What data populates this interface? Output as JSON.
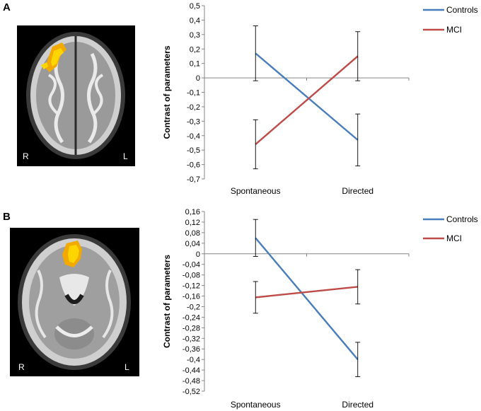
{
  "panels": [
    {
      "label": "A",
      "brain_sides": {
        "right": "R",
        "left": "L"
      }
    },
    {
      "label": "B",
      "brain_sides": {
        "right": "R",
        "left": "L"
      }
    }
  ],
  "colors": {
    "controls": "#4a7ebb",
    "mci": "#be4b48",
    "axis": "#868686",
    "errorbar": "#000000",
    "activation": "#ffd500"
  },
  "chart_data": [
    {
      "type": "line",
      "ylabel": "Contrast of parameters",
      "xlabel": "",
      "categories": [
        "Spontaneous",
        "Directed"
      ],
      "ylim": [
        -0.7,
        0.5
      ],
      "ytick_labels": [
        "0,5",
        "0,4",
        "0,3",
        "0,2",
        "0,1",
        "0",
        "-0,1",
        "-0,2",
        "-0,3",
        "-0,4",
        "-0,5",
        "-0,6",
        "-0,7"
      ],
      "legend_position": "top-right",
      "series": [
        {
          "name": "Controls",
          "values": [
            0.17,
            -0.43
          ],
          "errors": [
            0.19,
            0.18
          ]
        },
        {
          "name": "MCI",
          "values": [
            -0.46,
            0.15
          ],
          "errors": [
            0.17,
            0.17
          ]
        }
      ]
    },
    {
      "type": "line",
      "ylabel": "Contrast of parameters",
      "xlabel": "",
      "categories": [
        "Spontaneous",
        "Directed"
      ],
      "ylim": [
        -0.52,
        0.16
      ],
      "ytick_labels": [
        "0,16",
        "0,12",
        "0,08",
        "0,04",
        "0",
        "-0,04",
        "-0,08",
        "-0,12",
        "-0,16",
        "-0,2",
        "-0,24",
        "-0,28",
        "-0,32",
        "-0,36",
        "-0,4",
        "-0,44",
        "-0,48",
        "-0,52"
      ],
      "legend_position": "top-right",
      "series": [
        {
          "name": "Controls",
          "values": [
            0.06,
            -0.4
          ],
          "errors": [
            0.07,
            0.065
          ]
        },
        {
          "name": "MCI",
          "values": [
            -0.165,
            -0.125
          ],
          "errors": [
            0.06,
            0.065
          ]
        }
      ]
    }
  ]
}
